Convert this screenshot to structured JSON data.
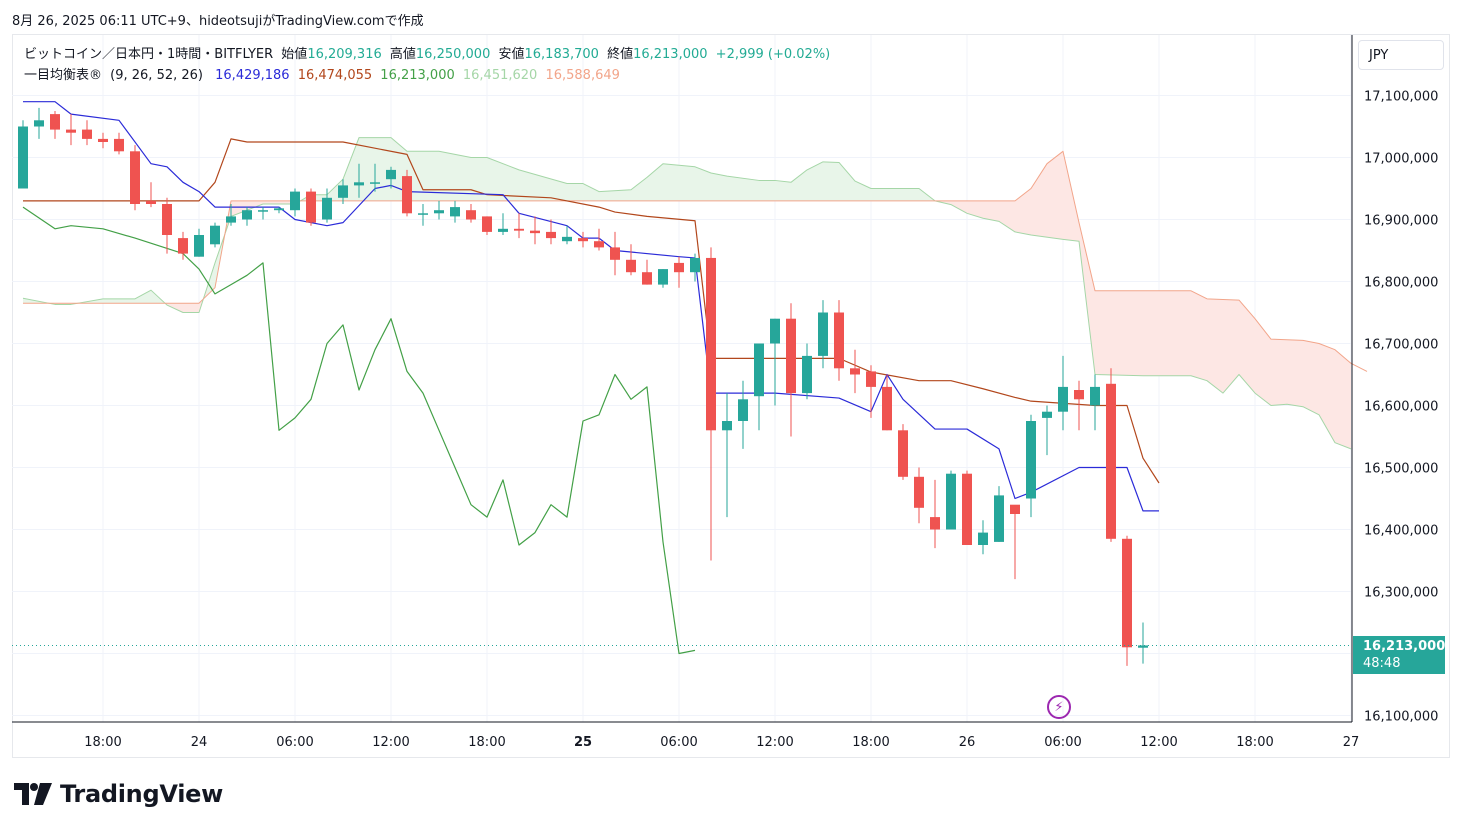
{
  "caption": "8月 26, 2025 06:11 UTC+9、hideotsujiがTradingView.comで作成",
  "legend": {
    "line1": {
      "symbol": "ビットコイン／日本円・1時間・BITFLYER",
      "open_label": "始値",
      "open": "16,209,316",
      "high_label": "高値",
      "high": "16,250,000",
      "low_label": "安値",
      "low": "16,183,700",
      "close_label": "終値",
      "close": "16,213,000",
      "change": "+2,999 (+0.02%)"
    },
    "line2": {
      "name": "一目均衡表®",
      "params": "(9, 26, 52, 26)",
      "tenkan": "16,429,186",
      "kijun": "16,474,055",
      "chikou": "16,213,000",
      "spanA": "16,451,620",
      "spanB": "16,588,649"
    }
  },
  "currency_button": "JPY",
  "price_tag": {
    "price": "16,213,000",
    "countdown": "48:48"
  },
  "footer": {
    "brand": "TradingView"
  },
  "colors": {
    "up": "#26a69a",
    "down": "#ef5350",
    "tenkan": "#2b2bd8",
    "kijun": "#b2471c",
    "chikou": "#43a047",
    "spanA": "#a5d6a7",
    "spanB": "#f2a58a",
    "cloud_bull": "#e8f5e9",
    "cloud_bear": "#fde7e4"
  },
  "chart_data": {
    "type": "candlestick",
    "interval": "1h",
    "ylim": [
      16070000,
      17150000
    ],
    "y_ticks": [
      "17,100,000",
      "17,000,000",
      "16,900,000",
      "16,800,000",
      "16,700,000",
      "16,600,000",
      "16,500,000",
      "16,400,000",
      "16,300,000",
      "16,100,000"
    ],
    "y_tick_values": [
      17100000,
      17000000,
      16900000,
      16800000,
      16700000,
      16600000,
      16500000,
      16400000,
      16300000,
      16100000
    ],
    "x_ticks": [
      "18:00",
      "24",
      "06:00",
      "12:00",
      "18:00",
      "25",
      "06:00",
      "12:00",
      "18:00",
      "26",
      "06:00",
      "12:00",
      "18:00",
      "27"
    ],
    "x_tick_hours": [
      5,
      11,
      17,
      23,
      29,
      35,
      41,
      47,
      53,
      59,
      65,
      71,
      77,
      83
    ],
    "x_hours_range": [
      -1.5,
      83.5
    ],
    "candles": [
      {
        "o": 16950000,
        "h": 17060000,
        "l": 16950000,
        "c": 17050000
      },
      {
        "o": 17050000,
        "h": 17080000,
        "l": 17030000,
        "c": 17060000
      },
      {
        "o": 17070000,
        "h": 17075000,
        "l": 17030000,
        "c": 17045000
      },
      {
        "o": 17045000,
        "h": 17070000,
        "l": 17020000,
        "c": 17040000
      },
      {
        "o": 17045000,
        "h": 17060000,
        "l": 17020000,
        "c": 17030000
      },
      {
        "o": 17030000,
        "h": 17040000,
        "l": 17015000,
        "c": 17025000
      },
      {
        "o": 17030000,
        "h": 17040000,
        "l": 17005000,
        "c": 17010000
      },
      {
        "o": 17010000,
        "h": 17020000,
        "l": 16915000,
        "c": 16925000
      },
      {
        "o": 16930000,
        "h": 16960000,
        "l": 16920000,
        "c": 16925000
      },
      {
        "o": 16925000,
        "h": 16935000,
        "l": 16845000,
        "c": 16875000
      },
      {
        "o": 16870000,
        "h": 16880000,
        "l": 16835000,
        "c": 16845000
      },
      {
        "o": 16840000,
        "h": 16885000,
        "l": 16840000,
        "c": 16875000
      },
      {
        "o": 16860000,
        "h": 16895000,
        "l": 16855000,
        "c": 16890000
      },
      {
        "o": 16895000,
        "h": 16925000,
        "l": 16890000,
        "c": 16905000
      },
      {
        "o": 16900000,
        "h": 16920000,
        "l": 16890000,
        "c": 16915000
      },
      {
        "o": 16915000,
        "h": 16920000,
        "l": 16900000,
        "c": 16915000
      },
      {
        "o": 16915000,
        "h": 16920000,
        "l": 16910000,
        "c": 16918000
      },
      {
        "o": 16915000,
        "h": 16950000,
        "l": 16905000,
        "c": 16945000
      },
      {
        "o": 16945000,
        "h": 16950000,
        "l": 16890000,
        "c": 16895000
      },
      {
        "o": 16900000,
        "h": 16950000,
        "l": 16895000,
        "c": 16935000
      },
      {
        "o": 16935000,
        "h": 16965000,
        "l": 16925000,
        "c": 16955000
      },
      {
        "o": 16955000,
        "h": 16990000,
        "l": 16935000,
        "c": 16960000
      },
      {
        "o": 16960000,
        "h": 16990000,
        "l": 16945000,
        "c": 16960000
      },
      {
        "o": 16965000,
        "h": 16985000,
        "l": 16950000,
        "c": 16980000
      },
      {
        "o": 16970000,
        "h": 16980000,
        "l": 16905000,
        "c": 16910000
      },
      {
        "o": 16910000,
        "h": 16925000,
        "l": 16890000,
        "c": 16910000
      },
      {
        "o": 16910000,
        "h": 16930000,
        "l": 16900000,
        "c": 16915000
      },
      {
        "o": 16905000,
        "h": 16930000,
        "l": 16895000,
        "c": 16920000
      },
      {
        "o": 16915000,
        "h": 16925000,
        "l": 16895000,
        "c": 16900000
      },
      {
        "o": 16905000,
        "h": 16905000,
        "l": 16875000,
        "c": 16880000
      },
      {
        "o": 16880000,
        "h": 16910000,
        "l": 16875000,
        "c": 16885000
      },
      {
        "o": 16885000,
        "h": 16910000,
        "l": 16870000,
        "c": 16882000
      },
      {
        "o": 16882000,
        "h": 16905000,
        "l": 16860000,
        "c": 16878000
      },
      {
        "o": 16880000,
        "h": 16900000,
        "l": 16860000,
        "c": 16870000
      },
      {
        "o": 16865000,
        "h": 16890000,
        "l": 16860000,
        "c": 16872000
      },
      {
        "o": 16870000,
        "h": 16880000,
        "l": 16855000,
        "c": 16865000
      },
      {
        "o": 16865000,
        "h": 16885000,
        "l": 16850000,
        "c": 16855000
      },
      {
        "o": 16855000,
        "h": 16880000,
        "l": 16810000,
        "c": 16835000
      },
      {
        "o": 16835000,
        "h": 16860000,
        "l": 16810000,
        "c": 16815000
      },
      {
        "o": 16815000,
        "h": 16835000,
        "l": 16795000,
        "c": 16795000
      },
      {
        "o": 16795000,
        "h": 16820000,
        "l": 16790000,
        "c": 16820000
      },
      {
        "o": 16830000,
        "h": 16840000,
        "l": 16790000,
        "c": 16815000
      },
      {
        "o": 16815000,
        "h": 16845000,
        "l": 16800000,
        "c": 16838000
      },
      {
        "o": 16838000,
        "h": 16855000,
        "l": 16350000,
        "c": 16560000
      },
      {
        "o": 16560000,
        "h": 16620000,
        "l": 16420000,
        "c": 16575000
      },
      {
        "o": 16575000,
        "h": 16640000,
        "l": 16530000,
        "c": 16610000
      },
      {
        "o": 16615000,
        "h": 16700000,
        "l": 16560000,
        "c": 16700000
      },
      {
        "o": 16700000,
        "h": 16740000,
        "l": 16600000,
        "c": 16740000
      },
      {
        "o": 16740000,
        "h": 16765000,
        "l": 16550000,
        "c": 16620000
      },
      {
        "o": 16620000,
        "h": 16700000,
        "l": 16610000,
        "c": 16680000
      },
      {
        "o": 16680000,
        "h": 16770000,
        "l": 16660000,
        "c": 16750000
      },
      {
        "o": 16750000,
        "h": 16770000,
        "l": 16640000,
        "c": 16660000
      },
      {
        "o": 16660000,
        "h": 16690000,
        "l": 16620000,
        "c": 16650000
      },
      {
        "o": 16655000,
        "h": 16665000,
        "l": 16580000,
        "c": 16630000
      },
      {
        "o": 16630000,
        "h": 16650000,
        "l": 16560000,
        "c": 16560000
      },
      {
        "o": 16560000,
        "h": 16570000,
        "l": 16480000,
        "c": 16485000
      },
      {
        "o": 16485000,
        "h": 16500000,
        "l": 16410000,
        "c": 16435000
      },
      {
        "o": 16420000,
        "h": 16480000,
        "l": 16370000,
        "c": 16400000
      },
      {
        "o": 16400000,
        "h": 16495000,
        "l": 16400000,
        "c": 16490000
      },
      {
        "o": 16490000,
        "h": 16495000,
        "l": 16375000,
        "c": 16375000
      },
      {
        "o": 16375000,
        "h": 16415000,
        "l": 16360000,
        "c": 16395000
      },
      {
        "o": 16380000,
        "h": 16470000,
        "l": 16380000,
        "c": 16455000
      },
      {
        "o": 16440000,
        "h": 16430000,
        "l": 16320000,
        "c": 16425000
      },
      {
        "o": 16450000,
        "h": 16585000,
        "l": 16420000,
        "c": 16575000
      },
      {
        "o": 16580000,
        "h": 16600000,
        "l": 16520000,
        "c": 16590000
      },
      {
        "o": 16590000,
        "h": 16680000,
        "l": 16560000,
        "c": 16630000
      },
      {
        "o": 16625000,
        "h": 16640000,
        "l": 16560000,
        "c": 16610000
      },
      {
        "o": 16600000,
        "h": 16650000,
        "l": 16560000,
        "c": 16630000
      },
      {
        "o": 16635000,
        "h": 16660000,
        "l": 16380000,
        "c": 16385000
      },
      {
        "o": 16385000,
        "h": 16390000,
        "l": 16180000,
        "c": 16210000
      },
      {
        "o": 16209316,
        "h": 16250000,
        "l": 16183700,
        "c": 16213000
      }
    ],
    "tenkan": [
      [
        0,
        17090000
      ],
      [
        2,
        17090000
      ],
      [
        3,
        17070000
      ],
      [
        6,
        17060000
      ],
      [
        8,
        16990000
      ],
      [
        9,
        16985000
      ],
      [
        10,
        16960000
      ],
      [
        11,
        16945000
      ],
      [
        12,
        16920000
      ],
      [
        16,
        16920000
      ],
      [
        17,
        16900000
      ],
      [
        19,
        16890000
      ],
      [
        20,
        16895000
      ],
      [
        22,
        16950000
      ],
      [
        23,
        16955000
      ],
      [
        24,
        16945000
      ],
      [
        30,
        16940000
      ],
      [
        31,
        16910000
      ],
      [
        34,
        16890000
      ],
      [
        35,
        16870000
      ],
      [
        36,
        16870000
      ],
      [
        37,
        16850000
      ],
      [
        41,
        16840000
      ],
      [
        42,
        16838000
      ],
      [
        43,
        16620000
      ],
      [
        47,
        16620000
      ],
      [
        51,
        16612000
      ],
      [
        53,
        16590000
      ],
      [
        54,
        16650000
      ],
      [
        55,
        16610000
      ],
      [
        57,
        16562000
      ],
      [
        59,
        16562000
      ],
      [
        61,
        16530000
      ],
      [
        62,
        16450000
      ],
      [
        63,
        16460000
      ],
      [
        66,
        16500000
      ],
      [
        69,
        16500000
      ],
      [
        70,
        16430000
      ],
      [
        71,
        16430000
      ]
    ],
    "kijun": [
      [
        0,
        16930000
      ],
      [
        11,
        16930000
      ],
      [
        12,
        16960000
      ],
      [
        13,
        17030000
      ],
      [
        14,
        17025000
      ],
      [
        20,
        17025000
      ],
      [
        24,
        17005000
      ],
      [
        25,
        16948000
      ],
      [
        28,
        16948000
      ],
      [
        29,
        16940000
      ],
      [
        33,
        16935000
      ],
      [
        36,
        16920000
      ],
      [
        37,
        16912000
      ],
      [
        39,
        16905000
      ],
      [
        42,
        16898000
      ],
      [
        43,
        16676000
      ],
      [
        49,
        16676000
      ],
      [
        51,
        16676000
      ],
      [
        53,
        16654000
      ],
      [
        56,
        16640000
      ],
      [
        58,
        16640000
      ],
      [
        60,
        16627000
      ],
      [
        62,
        16613000
      ],
      [
        63,
        16607000
      ],
      [
        67,
        16600000
      ],
      [
        69,
        16600000
      ],
      [
        70,
        16515000
      ],
      [
        71,
        16475000
      ]
    ],
    "chikou": [
      [
        0,
        16920000
      ],
      [
        2,
        16885000
      ],
      [
        3,
        16890000
      ],
      [
        5,
        16885000
      ],
      [
        7,
        16870000
      ],
      [
        10,
        16845000
      ],
      [
        11,
        16820000
      ],
      [
        12,
        16780000
      ],
      [
        13,
        16795000
      ],
      [
        14,
        16810000
      ],
      [
        15,
        16830000
      ],
      [
        16,
        16560000
      ],
      [
        17,
        16580000
      ],
      [
        18,
        16610000
      ],
      [
        19,
        16700000
      ],
      [
        20,
        16730000
      ],
      [
        21,
        16625000
      ],
      [
        22,
        16690000
      ],
      [
        23,
        16740000
      ],
      [
        24,
        16655000
      ],
      [
        25,
        16620000
      ],
      [
        26,
        16560000
      ],
      [
        27,
        16500000
      ],
      [
        28,
        16440000
      ],
      [
        29,
        16420000
      ],
      [
        30,
        16480000
      ],
      [
        31,
        16375000
      ],
      [
        32,
        16395000
      ],
      [
        33,
        16440000
      ],
      [
        34,
        16420000
      ],
      [
        35,
        16575000
      ],
      [
        36,
        16585000
      ],
      [
        37,
        16650000
      ],
      [
        38,
        16610000
      ],
      [
        39,
        16630000
      ],
      [
        40,
        16380000
      ],
      [
        41,
        16200000
      ],
      [
        42,
        16205000
      ]
    ],
    "spanA": [
      [
        0,
        16773000
      ],
      [
        2,
        16763000
      ],
      [
        3,
        16763000
      ],
      [
        5,
        16772000
      ],
      [
        7,
        16772000
      ],
      [
        8,
        16786000
      ],
      [
        9,
        16762000
      ],
      [
        10,
        16750000
      ],
      [
        11,
        16750000
      ],
      [
        12,
        16830000
      ],
      [
        13,
        16905000
      ],
      [
        15,
        16925000
      ],
      [
        17,
        16925000
      ],
      [
        18,
        16940000
      ],
      [
        19,
        16940000
      ],
      [
        20,
        16965000
      ],
      [
        21,
        17032000
      ],
      [
        23,
        17032000
      ],
      [
        24,
        17010000
      ],
      [
        26,
        17010000
      ],
      [
        28,
        17000000
      ],
      [
        29,
        17000000
      ],
      [
        31,
        16980000
      ],
      [
        34,
        16958000
      ],
      [
        35,
        16958000
      ],
      [
        36,
        16945000
      ],
      [
        38,
        16948000
      ],
      [
        39,
        16968000
      ],
      [
        40,
        16990000
      ],
      [
        42,
        16985000
      ],
      [
        43,
        16975000
      ],
      [
        44,
        16970000
      ],
      [
        46,
        16963000
      ],
      [
        47,
        16963000
      ],
      [
        48,
        16960000
      ],
      [
        49,
        16980000
      ],
      [
        50,
        16993000
      ],
      [
        51,
        16992000
      ],
      [
        52,
        16962000
      ],
      [
        53,
        16950000
      ],
      [
        56,
        16950000
      ],
      [
        57,
        16930000
      ],
      [
        58,
        16924000
      ],
      [
        59,
        16910000
      ],
      [
        60,
        16902000
      ],
      [
        61,
        16897000
      ],
      [
        62,
        16880000
      ],
      [
        63,
        16875000
      ],
      [
        65,
        16868000
      ],
      [
        66,
        16865000
      ],
      [
        67,
        16650000
      ],
      [
        70,
        16648000
      ],
      [
        71,
        16648000
      ],
      [
        73,
        16648000
      ],
      [
        74,
        16640000
      ],
      [
        75,
        16620000
      ],
      [
        76,
        16650000
      ],
      [
        77,
        16620000
      ],
      [
        78,
        16600000
      ],
      [
        79,
        16602000
      ],
      [
        80,
        16598000
      ],
      [
        81,
        16585000
      ],
      [
        82,
        16540000
      ],
      [
        83,
        16530000
      ]
    ],
    "spanB": [
      [
        0,
        16765000
      ],
      [
        10,
        16765000
      ],
      [
        11,
        16765000
      ],
      [
        12,
        16790000
      ],
      [
        13,
        16930000
      ],
      [
        40,
        16930000
      ],
      [
        58,
        16930000
      ],
      [
        59,
        16930000
      ],
      [
        60,
        16930000
      ],
      [
        61,
        16930000
      ],
      [
        62,
        16930000
      ],
      [
        63,
        16950000
      ],
      [
        64,
        16990000
      ],
      [
        65,
        17010000
      ],
      [
        66,
        16895000
      ],
      [
        67,
        16785000
      ],
      [
        71,
        16785000
      ],
      [
        73,
        16785000
      ],
      [
        74,
        16772000
      ],
      [
        76,
        16770000
      ],
      [
        77,
        16740000
      ],
      [
        78,
        16707000
      ],
      [
        80,
        16705000
      ],
      [
        81,
        16700000
      ],
      [
        82,
        16690000
      ],
      [
        83,
        16668000
      ],
      [
        84,
        16655000
      ]
    ],
    "current_price": 16213000
  }
}
